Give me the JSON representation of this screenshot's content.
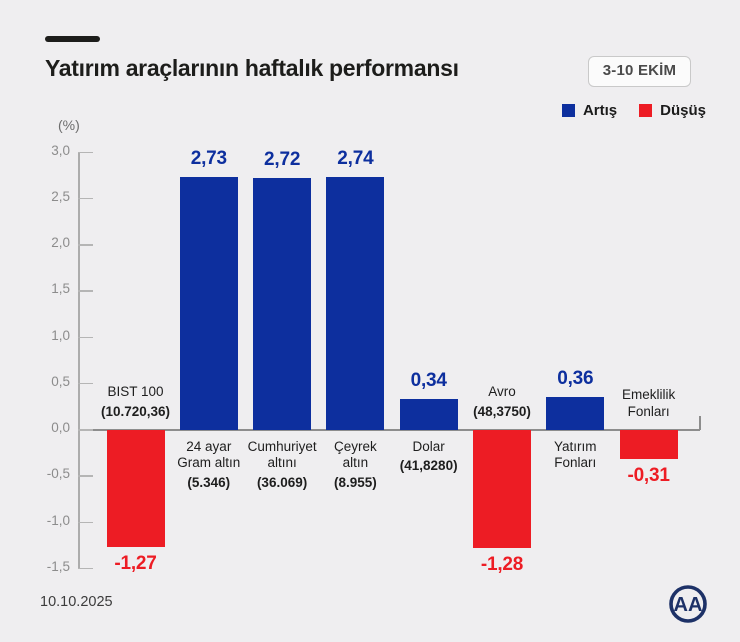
{
  "header": {
    "title": "Yatırım araçlarının haftalık performansı",
    "period_badge": "3-10 EKİM"
  },
  "legend": {
    "increase_label": "Artış",
    "decrease_label": "Düşüş"
  },
  "footer": {
    "date": "10.10.2025",
    "agency_logo": "AA"
  },
  "colors": {
    "increase": "#0d2f9e",
    "decrease": "#ed1c24",
    "background": "#efeef0"
  },
  "chart_data": {
    "type": "bar",
    "title": "Yatırım araçlarının haftalık performansı",
    "subtitle": "3-10 EKİM",
    "ylabel": "(%)",
    "ylim": [
      -1.5,
      3.0
    ],
    "ytick_step": 0.5,
    "grid": false,
    "legend_position": "top-right",
    "yticks": [
      {
        "value": 3.0,
        "label": "3,0"
      },
      {
        "value": 2.5,
        "label": "2,5"
      },
      {
        "value": 2.0,
        "label": "2,0"
      },
      {
        "value": 1.5,
        "label": "1,5"
      },
      {
        "value": 1.0,
        "label": "1,0"
      },
      {
        "value": 0.5,
        "label": "0,5"
      },
      {
        "value": 0.0,
        "label": "0,0"
      },
      {
        "value": -0.5,
        "label": "-0,5"
      },
      {
        "value": -1.0,
        "label": "-1,0"
      },
      {
        "value": -1.5,
        "label": "-1,5"
      }
    ],
    "bars": [
      {
        "category": "BIST 100",
        "detail": "(10.720,36)",
        "value": -1.27,
        "value_label": "-1,27"
      },
      {
        "category": "24 ayar\nGram altın",
        "detail": "(5.346)",
        "value": 2.73,
        "value_label": "2,73"
      },
      {
        "category": "Cumhuriyet\naltını",
        "detail": "(36.069)",
        "value": 2.72,
        "value_label": "2,72"
      },
      {
        "category": "Çeyrek\naltın",
        "detail": "(8.955)",
        "value": 2.74,
        "value_label": "2,74"
      },
      {
        "category": "Dolar",
        "detail": "(41,8280)",
        "value": 0.34,
        "value_label": "0,34"
      },
      {
        "category": "Avro",
        "detail": "(48,3750)",
        "value": -1.28,
        "value_label": "-1,28"
      },
      {
        "category": "Yatırım\nFonları",
        "detail": "",
        "value": 0.36,
        "value_label": "0,36"
      },
      {
        "category": "Emeklilik\nFonları",
        "detail": "",
        "value": -0.31,
        "value_label": "-0,31"
      }
    ]
  }
}
